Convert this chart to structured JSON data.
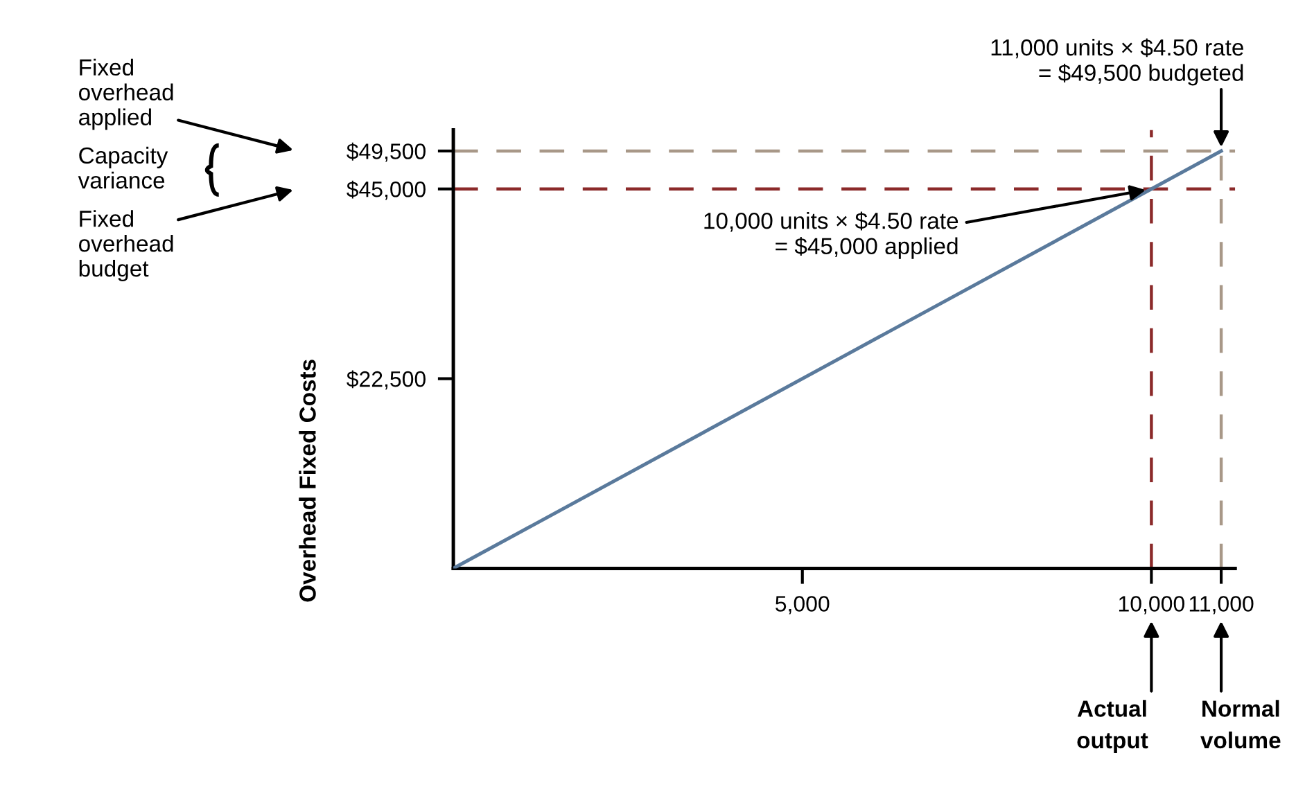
{
  "chart_data": {
    "type": "line",
    "ylabel": "Overhead Fixed Costs",
    "x": [
      0,
      10000,
      11000
    ],
    "series": [
      {
        "color": "#5a7a9c",
        "values": [
          0,
          45000,
          49500
        ]
      }
    ],
    "xlim": [
      0,
      11200
    ],
    "xticks": [
      {
        "value": 5000,
        "label": "5,000"
      },
      {
        "value": 10000,
        "label": "10,000"
      },
      {
        "value": 11000,
        "label": "11,000"
      }
    ],
    "ylim": [
      0,
      52000
    ],
    "yticks": [
      {
        "value": 22500,
        "label": "$22,500"
      },
      {
        "value": 45000,
        "label": "$45,000"
      },
      {
        "value": 49500,
        "label": "$49,500"
      }
    ],
    "ref_lines": [
      {
        "axis": "y",
        "value": 49500,
        "color": "#a89888",
        "line_style": "dashed"
      },
      {
        "axis": "x",
        "value": 11000,
        "color": "#a89888",
        "line_style": "dashed"
      },
      {
        "axis": "y",
        "value": 45000,
        "color": "#8b2a2a",
        "line_style": "dashed"
      },
      {
        "axis": "x",
        "value": 10000,
        "color": "#8b2a2a",
        "line_style": "dashed"
      }
    ],
    "annotations": [
      {
        "text": "11,000 units × $4.50 rate\n= $49,500 budgeted",
        "x": 11000,
        "y": 49500
      },
      {
        "text": "10,000 units × $4.50 rate\n= $45,000 applied",
        "x": 10000,
        "y": 45000
      },
      "Fixed\noverhead\napplied",
      "Capacity\nvariance",
      "Fixed\noverhead\nbudget",
      "Actual\noutput",
      "Normal\nvolume"
    ],
    "grid": false,
    "legend": false,
    "marker": "none",
    "line_style": "solid"
  }
}
